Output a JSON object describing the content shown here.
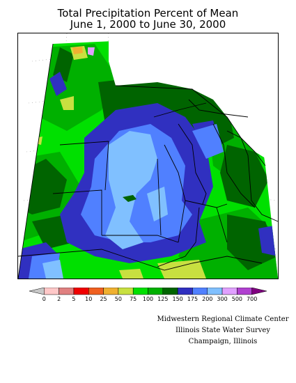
{
  "title": {
    "line1": "Total Precipitation Percent of Mean",
    "line2": "June 1, 2000 to June 30, 2000"
  },
  "legend": {
    "ticks": [
      "0",
      "2",
      "5",
      "10",
      "25",
      "50",
      "75",
      "100",
      "125",
      "150",
      "175",
      "200",
      "300",
      "500",
      "700"
    ],
    "colors": [
      "#c8c8c8",
      "#ffc8c8",
      "#e08080",
      "#f00000",
      "#f06020",
      "#f0b030",
      "#c8e040",
      "#00e000",
      "#00b000",
      "#006400",
      "#3030c0",
      "#5080ff",
      "#80c0ff",
      "#e0a0ff",
      "#b040d0",
      "#800080"
    ]
  },
  "credits": {
    "line1": "Midwestern Regional Climate Center",
    "line2": "Illinois State Water Survey",
    "line3": "Champaign, Illinois"
  },
  "map": {
    "palette": {
      "light_green": "#00e000",
      "green": "#00b000",
      "dark_green": "#006400",
      "dark_blue": "#3030c0",
      "blue": "#5080ff",
      "light_blue": "#80c0ff",
      "yellow_green": "#c8e040",
      "orange": "#f0b030",
      "purple": "#e0a0ff"
    }
  }
}
